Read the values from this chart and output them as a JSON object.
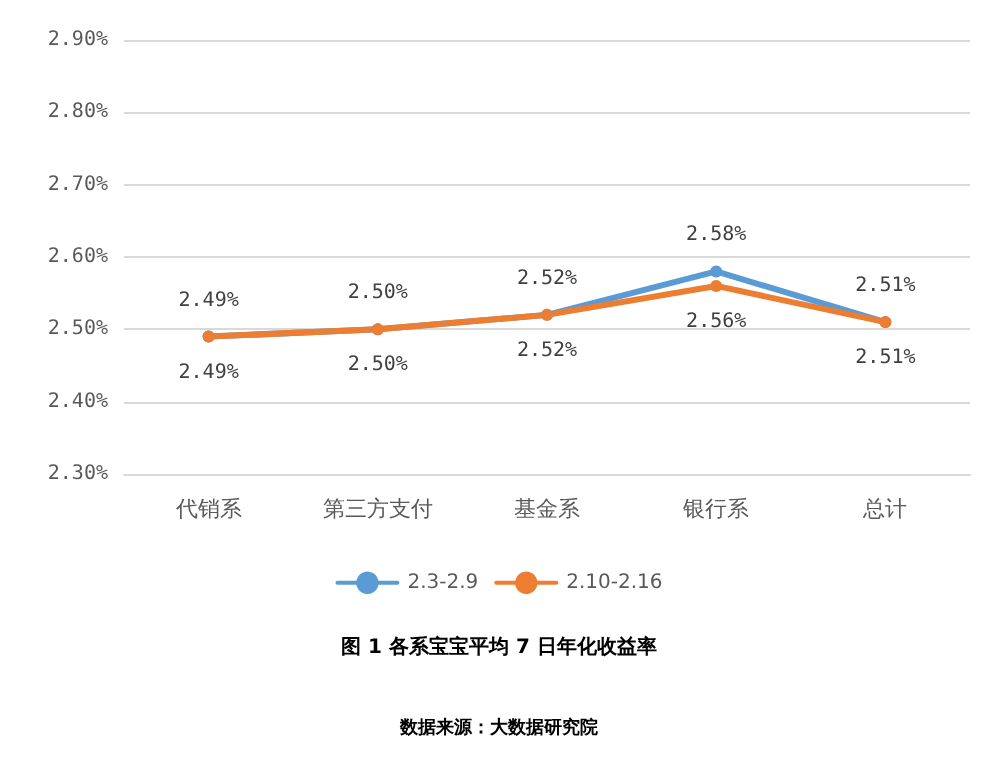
{
  "chart_data": {
    "type": "line",
    "title": "图 1 各系宝宝平均 7 日年化收益率",
    "annotations": [
      "数据来源：大数据研究院"
    ],
    "categories": [
      "代销系",
      "第三方支付",
      "基金系",
      "银行系",
      "总计"
    ],
    "series": [
      {
        "name": "2.3-2.9",
        "color": "#5b9bd5",
        "values": [
          2.49,
          2.5,
          2.52,
          2.58,
          2.51
        ],
        "value_labels": [
          "2.49%",
          "2.50%",
          "2.52%",
          "2.58%",
          "2.51%"
        ]
      },
      {
        "name": "2.10-2.16",
        "color": "#ed7d31",
        "values": [
          2.49,
          2.5,
          2.52,
          2.56,
          2.51
        ],
        "value_labels": [
          "2.49%",
          "2.50%",
          "2.52%",
          "2.56%",
          "2.51%"
        ]
      }
    ],
    "ylim": [
      2.3,
      2.9
    ],
    "yticks": [
      {
        "value": 2.3,
        "label": "2.30%"
      },
      {
        "value": 2.4,
        "label": "2.40%"
      },
      {
        "value": 2.5,
        "label": "2.50%"
      },
      {
        "value": 2.6,
        "label": "2.60%"
      },
      {
        "value": 2.7,
        "label": "2.70%"
      },
      {
        "value": 2.8,
        "label": "2.80%"
      },
      {
        "value": 2.9,
        "label": "2.90%"
      }
    ],
    "grid": "y",
    "legend": "bottom",
    "marker": "circle",
    "line_style": "solid"
  }
}
